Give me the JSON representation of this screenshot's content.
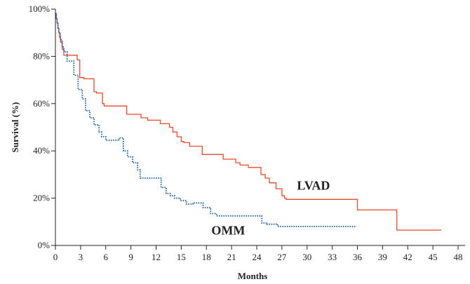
{
  "chart_data": {
    "type": "line",
    "title": "",
    "xlabel": "Months",
    "ylabel": "Survival (%)",
    "xlim": [
      0,
      48
    ],
    "ylim": [
      0,
      100
    ],
    "x_ticks": [
      0,
      3,
      6,
      9,
      12,
      15,
      18,
      21,
      24,
      27,
      30,
      33,
      36,
      39,
      42,
      45,
      48
    ],
    "x_tick_labels": [
      "0",
      "3",
      "6",
      "9",
      "12",
      "15",
      "18",
      "21",
      "24",
      "27",
      "30",
      "33",
      "36",
      "39",
      "42",
      "45",
      "48"
    ],
    "y_ticks": [
      0,
      20,
      40,
      60,
      80,
      100
    ],
    "y_tick_labels": [
      "0%",
      "20%",
      "40%",
      "60%",
      "80%",
      "100%"
    ],
    "grid": false,
    "legend": "none",
    "series": [
      {
        "name": "LVAD",
        "color": "#e8492a",
        "line_style": "solid",
        "step": true,
        "x": [
          0,
          0.1,
          0.2,
          0.3,
          0.4,
          0.5,
          0.6,
          0.8,
          1.0,
          2.6,
          2.9,
          3.4,
          4.6,
          4.9,
          5.6,
          5.8,
          8.5,
          10.2,
          11.0,
          12.5,
          13.6,
          14.0,
          14.5,
          15.0,
          15.3,
          16.0,
          17.5,
          20.0,
          21.5,
          22.0,
          23.0,
          24.5,
          25.0,
          25.5,
          26.3,
          27.0,
          27.3,
          27.5,
          36.0,
          40.7,
          46.0
        ],
        "y": [
          98,
          96,
          94,
          92,
          90,
          88,
          86,
          83,
          80.5,
          78.5,
          71,
          70.5,
          65,
          64.5,
          60,
          59,
          55.5,
          54,
          53,
          51.5,
          50,
          48,
          46,
          44,
          43.5,
          42,
          38.5,
          36.5,
          35,
          34,
          33,
          30,
          28.5,
          26.5,
          24,
          21,
          20,
          19.5,
          15,
          6.5,
          6.5
        ]
      },
      {
        "name": "OMM",
        "color": "#1f5fa8",
        "line_style": "dotted",
        "step": true,
        "x": [
          0,
          0.1,
          0.2,
          0.3,
          0.4,
          0.6,
          0.8,
          1.0,
          1.4,
          2.2,
          2.7,
          3.2,
          3.6,
          4.1,
          4.6,
          5.2,
          5.5,
          6.0,
          7.6,
          8.1,
          8.6,
          9.2,
          9.8,
          10.1,
          12.6,
          13.2,
          13.7,
          14.2,
          14.9,
          15.6,
          16.4,
          17.6,
          18.5,
          19.2,
          21.0,
          24.6,
          25.2,
          26.5,
          35.9
        ],
        "y": [
          98,
          96,
          94,
          92,
          90,
          87,
          84,
          82,
          78,
          72,
          66,
          62,
          57,
          54,
          51,
          48,
          46,
          44.5,
          45.5,
          40,
          37.5,
          35,
          32,
          28.5,
          24.5,
          22,
          21,
          20,
          19,
          17.5,
          18,
          16,
          13.5,
          12.5,
          12.5,
          9.5,
          9,
          8,
          8
        ]
      }
    ]
  }
}
